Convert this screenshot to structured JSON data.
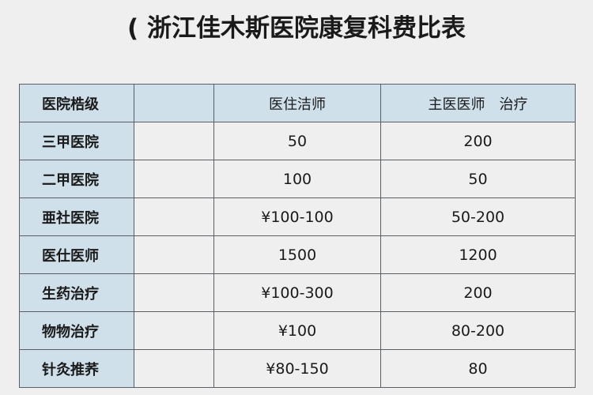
{
  "title": "( 浙江佳木斯医院康复科费比表",
  "table": {
    "headers": [
      "医院梏级",
      "",
      "医住洁师",
      "主医医师　治疗"
    ],
    "rows": [
      [
        "三甲医院",
        "",
        "50",
        "200"
      ],
      [
        "二甲医院",
        "",
        "100",
        "50"
      ],
      [
        "亜社医院",
        "",
        "¥100-100",
        "50-200"
      ],
      [
        "医仕医师",
        "",
        "1500",
        "1200"
      ],
      [
        "生药治疗",
        "",
        "¥100-300",
        "200"
      ],
      [
        "物物治疗",
        "",
        "¥100",
        "80-200"
      ],
      [
        "针灸推荞",
        "",
        "¥80-150",
        "80"
      ]
    ]
  },
  "colors": {
    "header_bg": "#cfe0ea",
    "cell_bg": "#efefef",
    "border": "#5a5f66"
  }
}
